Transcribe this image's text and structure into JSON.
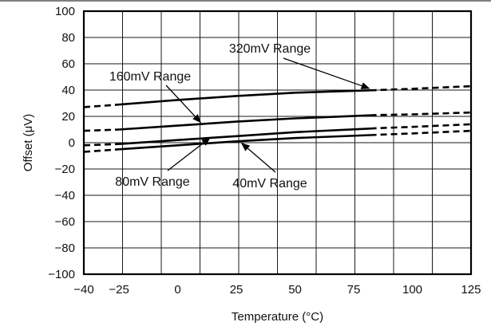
{
  "chart_data": {
    "type": "line",
    "title": "",
    "xlabel": "Temperature (°C)",
    "ylabel": "Offset (μV)",
    "xlim": [
      -40,
      125
    ],
    "ylim": [
      -100,
      100
    ],
    "x_ticks": [
      -40,
      -25,
      0,
      25,
      50,
      75,
      100,
      125
    ],
    "x_tick_labels": [
      "−40",
      "−25",
      "0",
      "25",
      "50",
      "75",
      "100",
      "125"
    ],
    "y_ticks": [
      -100,
      -80,
      -60,
      -40,
      -20,
      0,
      20,
      40,
      60,
      80,
      100
    ],
    "y_tick_labels": [
      "−100",
      "−80",
      "−60",
      "−40",
      "−20",
      "0",
      "20",
      "40",
      "60",
      "80",
      "100"
    ],
    "grid": true,
    "series": [
      {
        "label": "320mV Range",
        "line_style": "solid 25–85 °C, dashed outside",
        "points": [
          [
            -40,
            27
          ],
          [
            -25,
            29
          ],
          [
            0,
            32.5
          ],
          [
            25,
            35.5
          ],
          [
            50,
            38
          ],
          [
            85,
            40
          ],
          [
            100,
            41
          ],
          [
            125,
            43
          ]
        ],
        "annotation_point": [
          82,
          41
        ]
      },
      {
        "label": "160mV Range",
        "line_style": "solid 25–85 °C, dashed outside",
        "points": [
          [
            -40,
            9
          ],
          [
            -25,
            10
          ],
          [
            0,
            13
          ],
          [
            25,
            16
          ],
          [
            50,
            18.5
          ],
          [
            85,
            21
          ],
          [
            100,
            21.5
          ],
          [
            125,
            23
          ]
        ],
        "annotation_point": [
          10,
          15
        ]
      },
      {
        "label": "80mV Range",
        "line_style": "solid 25–85 °C, dashed outside",
        "points": [
          [
            -40,
            -2
          ],
          [
            -25,
            -1
          ],
          [
            0,
            2
          ],
          [
            25,
            5
          ],
          [
            50,
            8
          ],
          [
            85,
            11
          ],
          [
            100,
            12
          ],
          [
            125,
            14
          ]
        ],
        "annotation_point": [
          14,
          4
        ]
      },
      {
        "label": "40mV Range",
        "line_style": "solid 25–85 °C, dashed outside",
        "points": [
          [
            -40,
            -7
          ],
          [
            -25,
            -5
          ],
          [
            0,
            -2
          ],
          [
            25,
            1
          ],
          [
            50,
            3.5
          ],
          [
            85,
            6
          ],
          [
            100,
            7
          ],
          [
            125,
            9
          ]
        ],
        "annotation_point": [
          27,
          0
        ]
      }
    ]
  }
}
